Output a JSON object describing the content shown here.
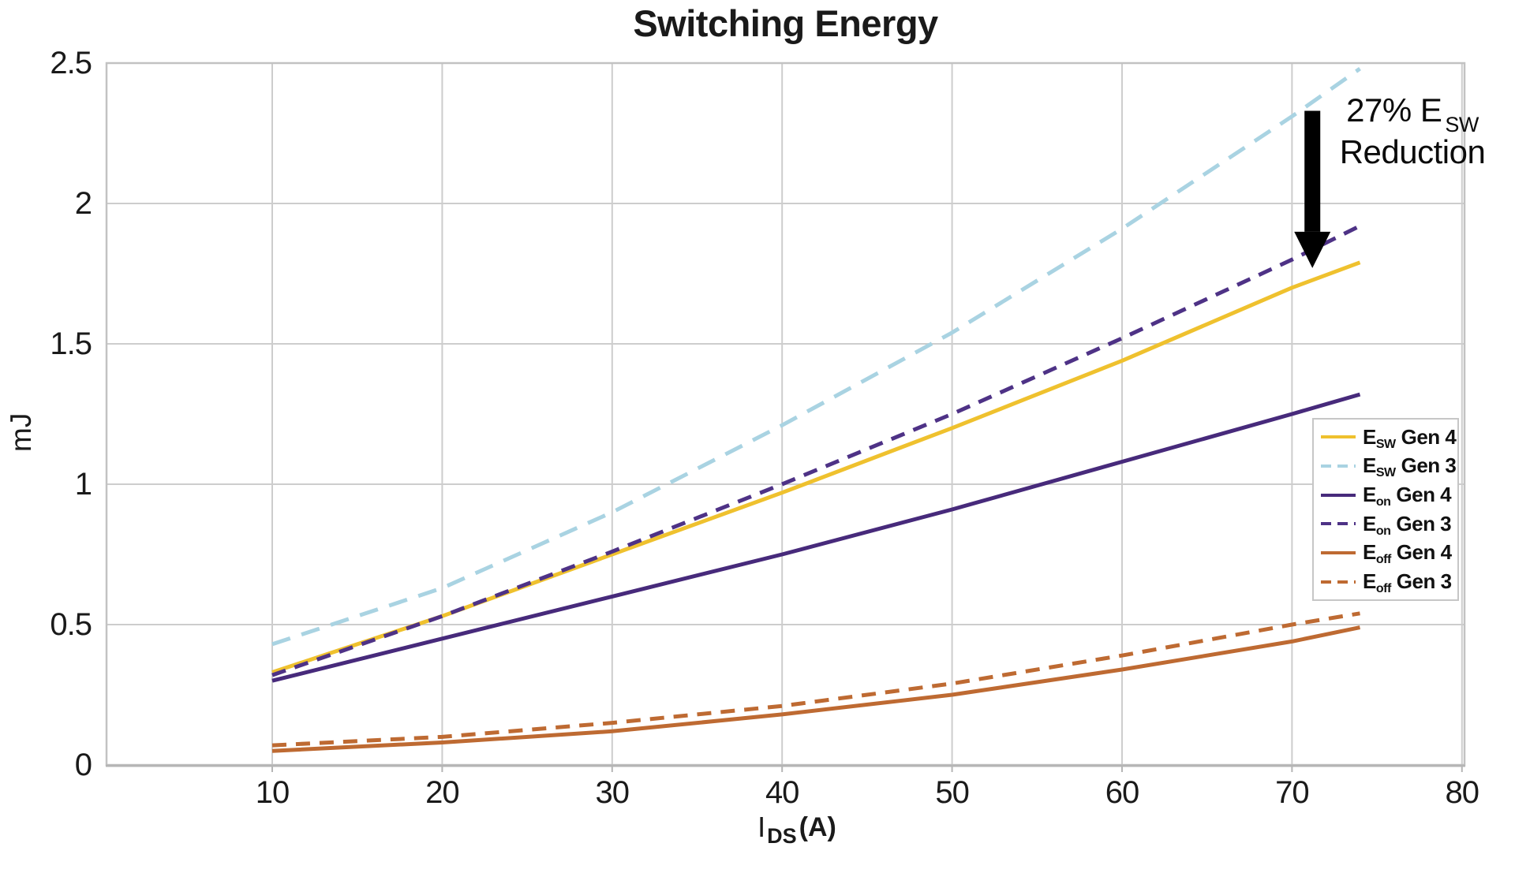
{
  "chart_data": {
    "type": "line",
    "title": "Switching Energy",
    "xlabel": {
      "symbol": "I",
      "subscript": "DS",
      "unit": "(A)"
    },
    "ylabel": "mJ",
    "xlim": [
      0.25,
      80.15
    ],
    "ylim": [
      0,
      2.5
    ],
    "xticks": [
      10,
      20,
      30,
      40,
      50,
      60,
      70,
      80
    ],
    "yticks": [
      0,
      0.5,
      1,
      1.5,
      2,
      2.5
    ],
    "grid": true,
    "legend_position": "center-right",
    "x": [
      10,
      20,
      30,
      40,
      50,
      60,
      70,
      74
    ],
    "series": [
      {
        "id": "esw-gen4",
        "label_prefix": "E",
        "label_sub": "SW",
        "label_suffix": "Gen 4",
        "line_style": "solid",
        "color": "#EFC12E",
        "values": [
          0.33,
          0.53,
          0.75,
          0.97,
          1.2,
          1.44,
          1.7,
          1.79
        ]
      },
      {
        "id": "esw-gen3",
        "label_prefix": "E",
        "label_sub": "SW",
        "label_suffix": "Gen 3",
        "line_style": "dashed",
        "color": "#A9D3E2",
        "values": [
          0.43,
          0.63,
          0.9,
          1.21,
          1.54,
          1.91,
          2.31,
          2.48
        ]
      },
      {
        "id": "eon-gen4",
        "label_prefix": "E",
        "label_sub": "on",
        "label_suffix": "Gen 4",
        "line_style": "solid",
        "color": "#472A7B",
        "values": [
          0.3,
          0.45,
          0.6,
          0.75,
          0.91,
          1.08,
          1.25,
          1.32
        ]
      },
      {
        "id": "eon-gen3",
        "label_prefix": "E",
        "label_sub": "on",
        "label_suffix": "Gen 3",
        "line_style": "dashed",
        "color": "#4E3286",
        "values": [
          0.32,
          0.53,
          0.76,
          1.0,
          1.25,
          1.52,
          1.8,
          1.92
        ]
      },
      {
        "id": "eoff-gen4",
        "label_prefix": "E",
        "label_sub": "off",
        "label_suffix": "Gen 4",
        "line_style": "solid",
        "color": "#BE6A32",
        "values": [
          0.05,
          0.08,
          0.12,
          0.18,
          0.25,
          0.34,
          0.44,
          0.49
        ]
      },
      {
        "id": "eoff-gen3",
        "label_prefix": "E",
        "label_sub": "off",
        "label_suffix": "Gen 3",
        "line_style": "dashed",
        "color": "#BE6A32",
        "values": [
          0.07,
          0.1,
          0.15,
          0.21,
          0.29,
          0.39,
          0.5,
          0.54
        ]
      }
    ],
    "annotation": {
      "line1_prefix": "27% E",
      "line1_sub": "SW",
      "line2": "Reduction",
      "arrow_x": 71.2,
      "arrow_from": 2.33,
      "arrow_to": 1.77,
      "arrow_color": "#000000"
    }
  },
  "colors": {
    "grid": "#cdcdcd",
    "frame": "#c2c2c2",
    "axis": "#b5b5b5",
    "text": "#1a1a1a"
  }
}
